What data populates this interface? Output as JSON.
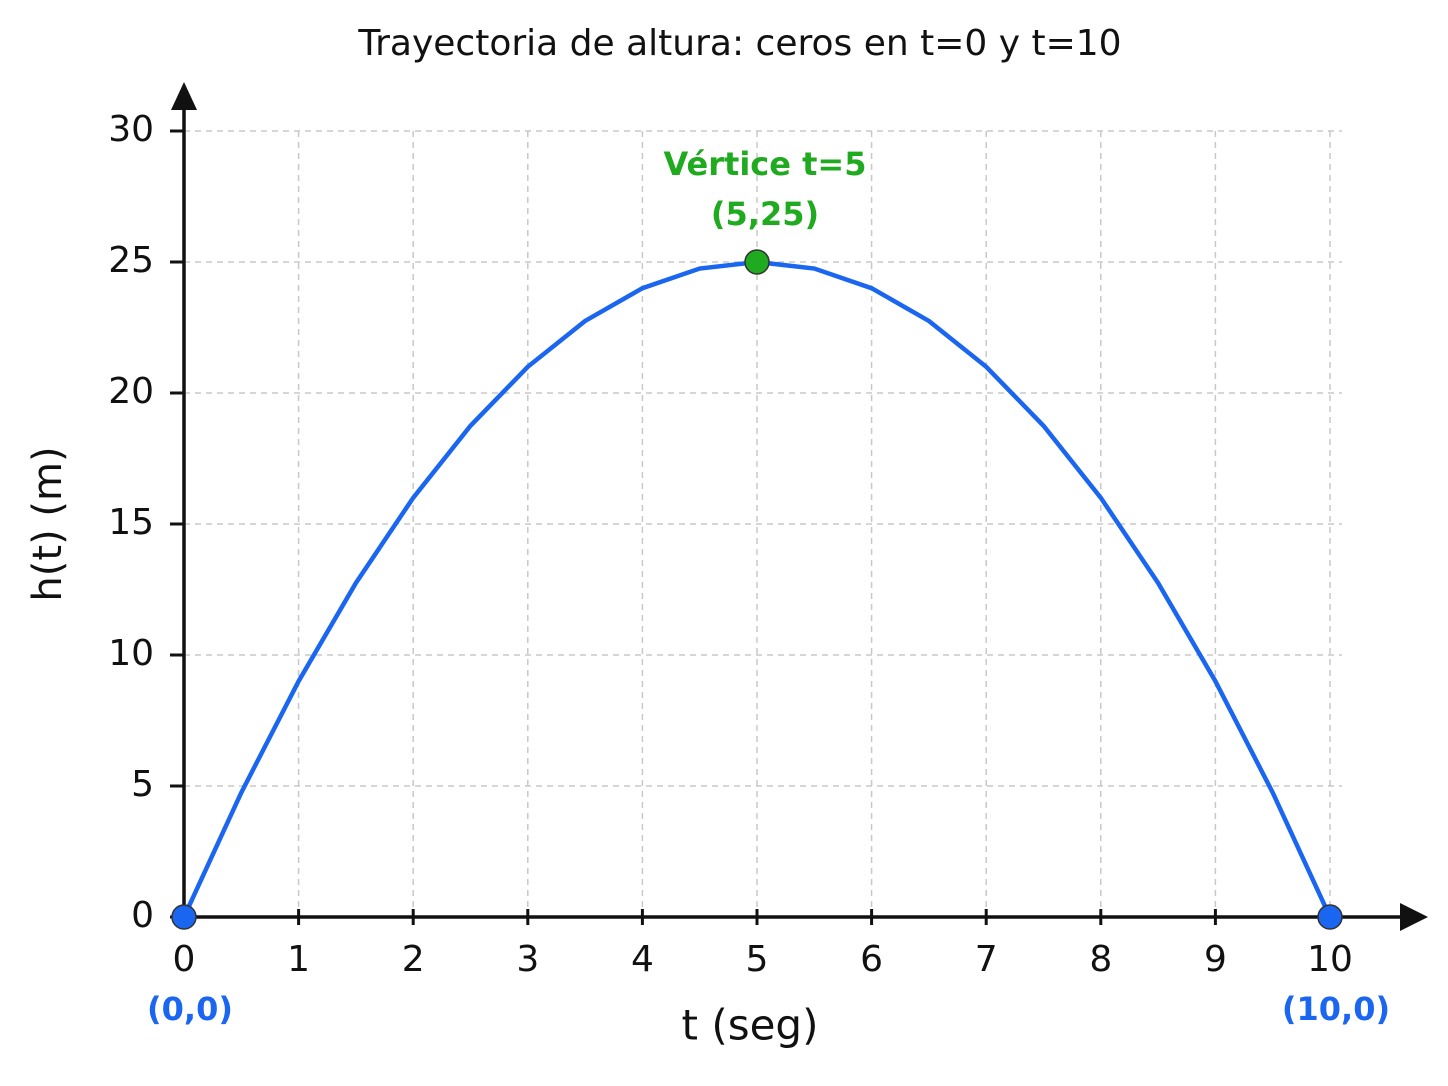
{
  "chart_data": {
    "type": "line",
    "title": "Trayectoria de altura: ceros en t=0 y t=10",
    "x_label": "t (seg)",
    "y_label": "h(t) (m)",
    "x": [
      0,
      0.5,
      1,
      1.5,
      2,
      2.5,
      3,
      3.5,
      4,
      4.5,
      5,
      5.5,
      6,
      6.5,
      7,
      7.5,
      8,
      8.5,
      9,
      9.5,
      10
    ],
    "values": [
      0,
      4.75,
      9,
      12.75,
      16,
      18.75,
      21,
      22.75,
      24,
      24.75,
      25,
      24.75,
      24,
      22.75,
      21,
      18.75,
      16,
      12.75,
      9,
      4.75,
      0
    ],
    "color": "#1a66f0",
    "xlim": [
      0,
      10
    ],
    "ylim": [
      0,
      30
    ],
    "xticks": [
      0,
      1,
      2,
      3,
      4,
      5,
      6,
      7,
      8,
      9,
      10
    ],
    "yticks": [
      0,
      5,
      10,
      15,
      20,
      25,
      30
    ],
    "grid": true,
    "points": [
      {
        "x": 0,
        "y": 0,
        "label": "(0,0)",
        "color": "#1a66f0"
      },
      {
        "x": 5,
        "y": 25,
        "title": "Vértice t=5",
        "label": "(5,25)",
        "color": "#1faa1f"
      },
      {
        "x": 10,
        "y": 0,
        "label": "(10,0)",
        "color": "#1a66f0"
      }
    ]
  }
}
